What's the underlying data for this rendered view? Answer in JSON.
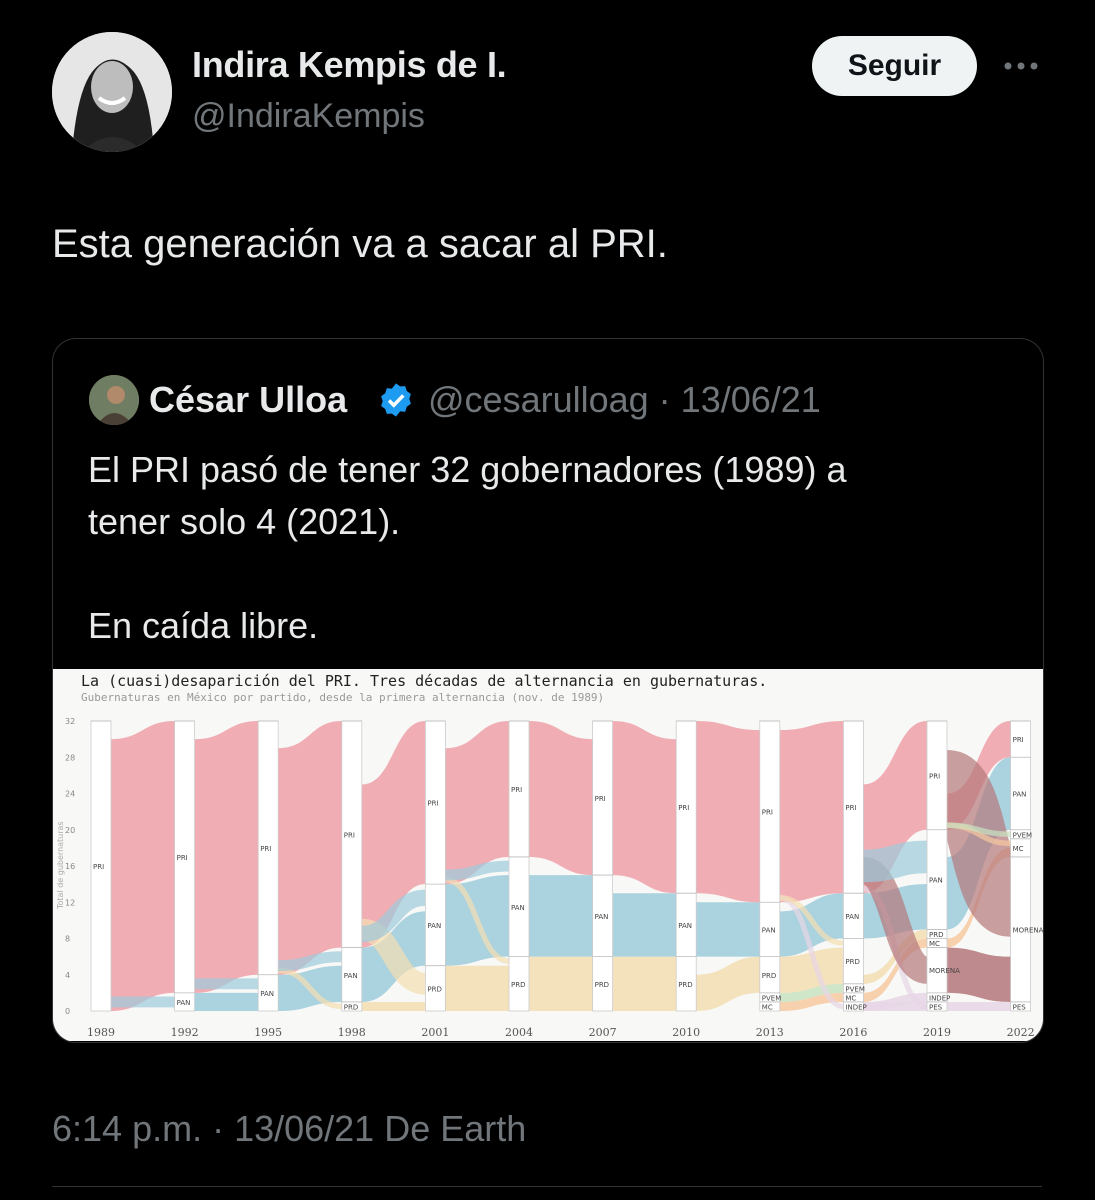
{
  "tweet": {
    "author_name": "Indira Kempis de I.",
    "author_handle": "@IndiraKempis",
    "follow_label": "Seguir",
    "text": "Esta generación va a sacar al PRI.",
    "meta": "6:14 p.m. · 13/06/21 De Earth"
  },
  "quoted": {
    "author_name": "César Ulloa",
    "author_handle": "@cesarulloag",
    "date": "13/06/21",
    "text_line1": "El PRI pasó de tener 32 gobernadores (1989) a",
    "text_line2": "tener solo 4 (2021).",
    "text_line3": "En caída libre."
  },
  "colors": {
    "PRI": "#eea0a8",
    "PAN": "#9ccbdb",
    "PRD": "#f3deb2",
    "MORENA": "#b5777a",
    "PVEM": "#c9e3c1",
    "MC": "#f7c9a0",
    "other": "#e7d6e5"
  },
  "chart_data": {
    "type": "alluvial",
    "title": "La (cuasi)desaparición del PRI. Tres décadas de alternancia en gubernaturas.",
    "subtitle": "Gubernaturas en México por partido, desde la primera alternancia (nov. de 1989)",
    "ylabel": "Total de gubernaturas",
    "ylim": [
      0,
      32
    ],
    "yticks": [
      0,
      4,
      8,
      12,
      16,
      20,
      24,
      28,
      32
    ],
    "categories": [
      "1989",
      "1992",
      "1995",
      "1998",
      "2001",
      "2004",
      "2007",
      "2010",
      "2013",
      "2016",
      "2019",
      "2022"
    ],
    "stacks": [
      [
        {
          "party": "PRI",
          "value": 32,
          "label": "PRI"
        }
      ],
      [
        {
          "party": "PAN",
          "value": 2,
          "label": "PAN"
        },
        {
          "party": "PRI",
          "value": 30,
          "label": "PRI"
        }
      ],
      [
        {
          "party": "PAN",
          "value": 4,
          "label": "PAN"
        },
        {
          "party": "PRI",
          "value": 28,
          "label": "PRI"
        }
      ],
      [
        {
          "party": "PRD",
          "value": 1,
          "label": "PRD"
        },
        {
          "party": "PAN",
          "value": 6,
          "label": "PAN"
        },
        {
          "party": "PRI",
          "value": 25,
          "label": "PRI"
        }
      ],
      [
        {
          "party": "PRD",
          "value": 5,
          "label": "PRD"
        },
        {
          "party": "PAN",
          "value": 9,
          "label": "PAN"
        },
        {
          "party": "PRI",
          "value": 18,
          "label": "PRI"
        }
      ],
      [
        {
          "party": "PRD",
          "value": 6,
          "label": "PRD"
        },
        {
          "party": "PAN",
          "value": 11,
          "label": "PAN"
        },
        {
          "party": "PRI",
          "value": 15,
          "label": "PRI"
        }
      ],
      [
        {
          "party": "PRD",
          "value": 6,
          "label": "PRD"
        },
        {
          "party": "PAN",
          "value": 9,
          "label": "PAN"
        },
        {
          "party": "PRI",
          "value": 17,
          "label": "PRI"
        }
      ],
      [
        {
          "party": "PRD",
          "value": 6,
          "label": "PRD"
        },
        {
          "party": "PAN",
          "value": 7,
          "label": "PAN"
        },
        {
          "party": "PRI",
          "value": 19,
          "label": "PRI"
        }
      ],
      [
        {
          "party": "MC",
          "value": 1,
          "label": "MC"
        },
        {
          "party": "PVEM",
          "value": 1,
          "label": "PVEM"
        },
        {
          "party": "PRD",
          "value": 4,
          "label": "PRD"
        },
        {
          "party": "PAN",
          "value": 6,
          "label": "PAN"
        },
        {
          "party": "PRI",
          "value": 20,
          "label": "PRI"
        }
      ],
      [
        {
          "party": "other",
          "value": 1,
          "label": "INDEP"
        },
        {
          "party": "MC",
          "value": 1,
          "label": "MC"
        },
        {
          "party": "PVEM",
          "value": 1,
          "label": "PVEM"
        },
        {
          "party": "PRD",
          "value": 5,
          "label": "PRD"
        },
        {
          "party": "PAN",
          "value": 5,
          "label": "PAN"
        },
        {
          "party": "PRI",
          "value": 19,
          "label": "PRI"
        }
      ],
      [
        {
          "party": "other",
          "value": 1,
          "label": "PES"
        },
        {
          "party": "other",
          "value": 1,
          "label": "INDEP"
        },
        {
          "party": "MORENA",
          "value": 5,
          "label": "MORENA"
        },
        {
          "party": "MC",
          "value": 1,
          "label": "MC"
        },
        {
          "party": "PRD",
          "value": 1,
          "label": "PRD"
        },
        {
          "party": "PAN",
          "value": 11,
          "label": "PAN"
        },
        {
          "party": "PRI",
          "value": 12,
          "label": "PRI"
        }
      ],
      [
        {
          "party": "other",
          "value": 1,
          "label": "PES"
        },
        {
          "party": "MORENA",
          "value": 16,
          "label": "MORENA"
        },
        {
          "party": "MC",
          "value": 2,
          "label": "MC"
        },
        {
          "party": "PVEM",
          "value": 1,
          "label": "PVEM"
        },
        {
          "party": "PAN",
          "value": 8,
          "label": "PAN"
        },
        {
          "party": "PRI",
          "value": 4,
          "label": "PRI"
        }
      ]
    ]
  }
}
